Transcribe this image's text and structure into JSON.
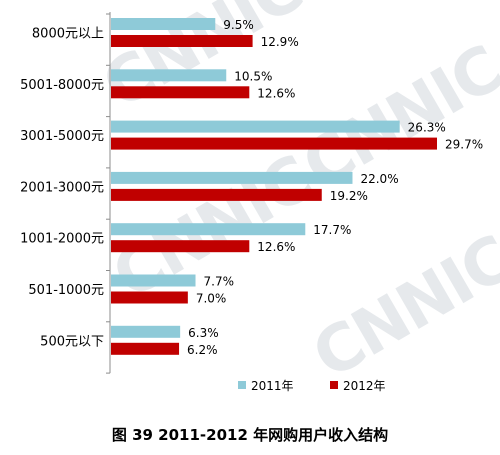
{
  "chart_data": {
    "type": "bar",
    "orientation": "horizontal",
    "categories": [
      "8000元以上",
      "5001-8000元",
      "3001-5000元",
      "2001-3000元",
      "1001-2000元",
      "501-1000元",
      "500元以下"
    ],
    "series": [
      {
        "name": "2011年",
        "color": "#8ecad8",
        "values": [
          9.5,
          10.5,
          26.3,
          22.0,
          17.7,
          7.7,
          6.3
        ],
        "labels": [
          "9.5%",
          "10.5%",
          "26.3%",
          "22.0%",
          "17.7%",
          "7.7%",
          "6.3%"
        ]
      },
      {
        "name": "2012年",
        "color": "#c00000",
        "values": [
          12.9,
          12.6,
          29.7,
          19.2,
          12.6,
          7.0,
          6.2
        ],
        "labels": [
          "12.9%",
          "12.6%",
          "29.7%",
          "19.2%",
          "12.6%",
          "7.0%",
          "6.2%"
        ]
      }
    ],
    "xlim": [
      0,
      30
    ],
    "grid": false,
    "legend_position": "bottom"
  },
  "caption": "图 39 2011-2012 年网购用户收入结构",
  "watermark": "CNNIC"
}
